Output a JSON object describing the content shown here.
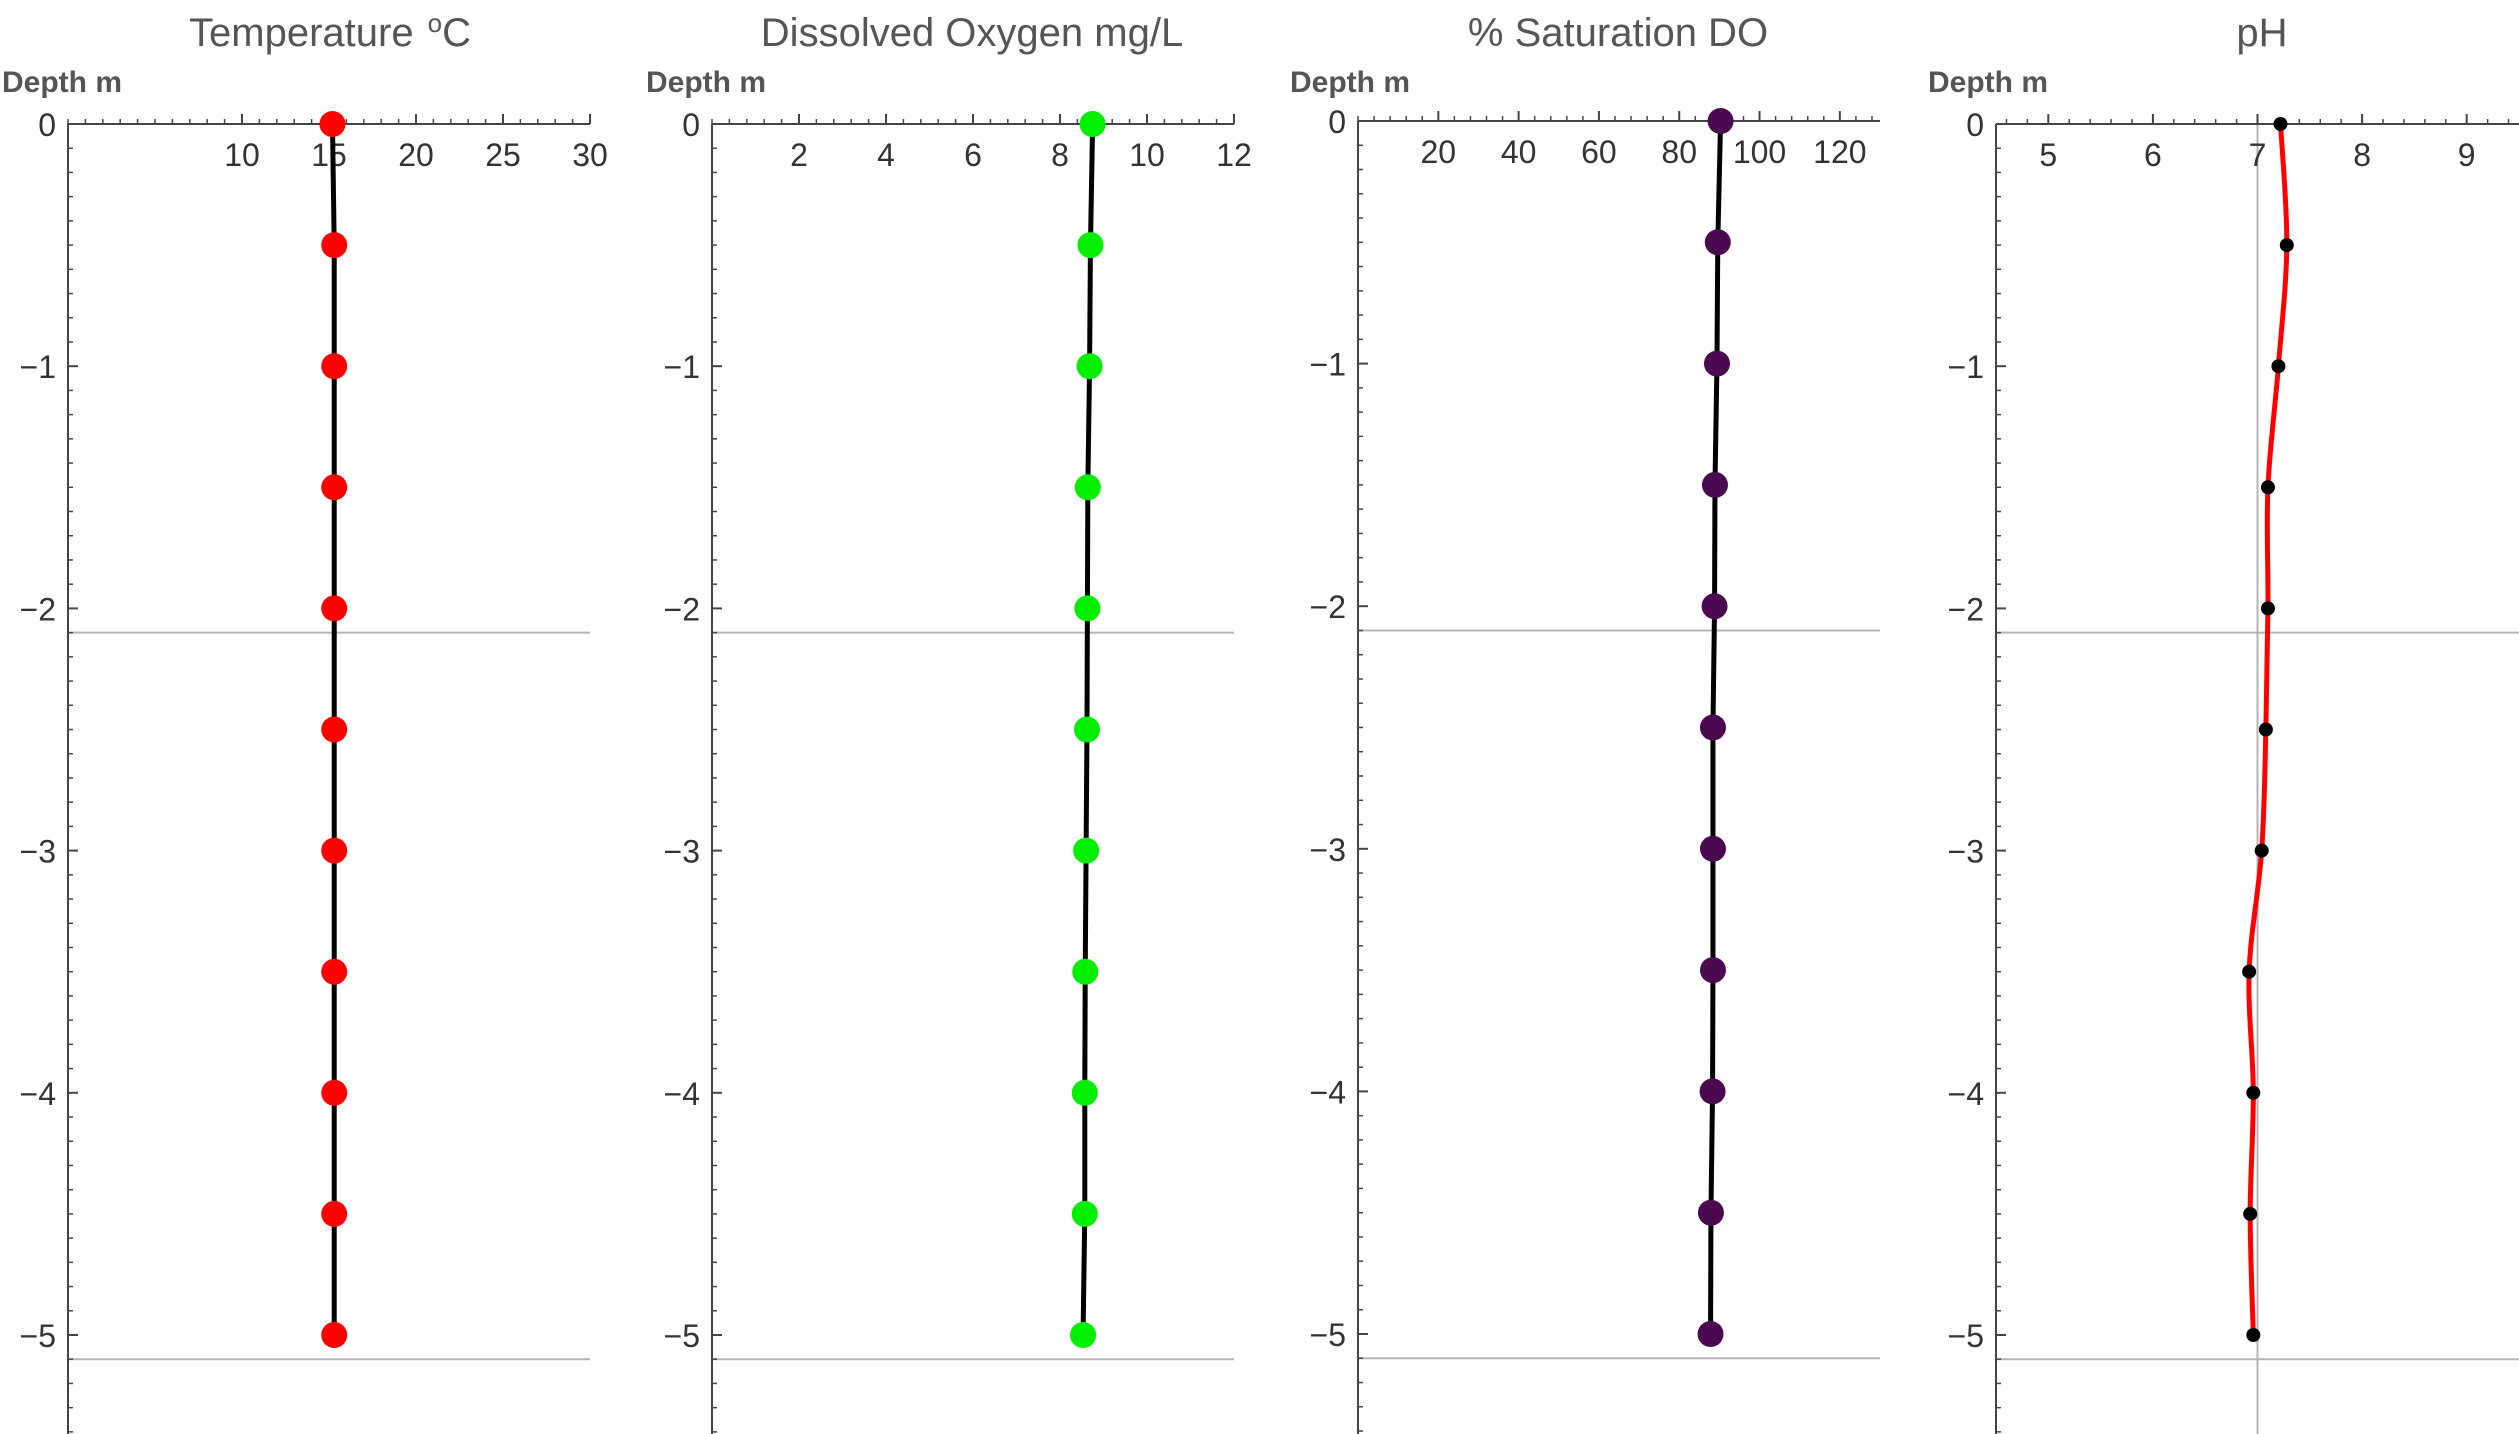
{
  "chart_data": [
    {
      "type": "line",
      "title": "Temperature",
      "title_sup": "o",
      "title_unit": "C",
      "xlabel": "",
      "ylabel": "Depth m",
      "xlim": [
        0,
        30
      ],
      "ylim": [
        -5.4,
        0
      ],
      "x_ticks": [
        10,
        15,
        20,
        25,
        30
      ],
      "y_ticks": [
        0,
        -1,
        -2,
        -3,
        -4,
        -5
      ],
      "y_tick_labels": [
        "0",
        "−1",
        "−2",
        "−3",
        "−4",
        "−5"
      ],
      "grid_y": [
        -2.1,
        -5.1
      ],
      "line_color": "#000000",
      "marker_color": "#ff0000",
      "series": [
        {
          "depth": [
            0,
            -0.5,
            -1,
            -1.5,
            -2,
            -2.5,
            -3,
            -3.5,
            -4,
            -4.5,
            -5
          ],
          "values": [
            15.2,
            15.3,
            15.3,
            15.3,
            15.3,
            15.3,
            15.3,
            15.3,
            15.3,
            15.3,
            15.3
          ]
        }
      ]
    },
    {
      "type": "line",
      "title": "Dissolved Oxygen mg/L",
      "xlabel": "",
      "ylabel": "Depth m",
      "xlim": [
        0,
        12
      ],
      "ylim": [
        -5.4,
        0
      ],
      "x_ticks": [
        2,
        4,
        6,
        8,
        10,
        12
      ],
      "y_ticks": [
        0,
        -1,
        -2,
        -3,
        -4,
        -5
      ],
      "y_tick_labels": [
        "0",
        "−1",
        "−2",
        "−3",
        "−4",
        "−5"
      ],
      "grid_y": [
        -2.1,
        -5.1
      ],
      "line_color": "#000000",
      "marker_color": "#00ee00",
      "series": [
        {
          "depth": [
            0,
            -0.5,
            -1,
            -1.5,
            -2,
            -2.5,
            -3,
            -3.5,
            -4,
            -4.5,
            -5
          ],
          "values": [
            8.75,
            8.7,
            8.68,
            8.64,
            8.63,
            8.62,
            8.6,
            8.58,
            8.57,
            8.57,
            8.53
          ]
        }
      ]
    },
    {
      "type": "line",
      "title": "% Saturation DO",
      "xlabel": "",
      "ylabel": "Depth m",
      "xlim": [
        0,
        130
      ],
      "ylim": [
        -5.4,
        0
      ],
      "x_ticks": [
        20,
        40,
        60,
        80,
        100,
        120
      ],
      "y_ticks": [
        0,
        -1,
        -2,
        -3,
        -4,
        -5
      ],
      "y_tick_labels": [
        "0",
        "−1",
        "−2",
        "−3",
        "−4",
        "−5"
      ],
      "grid_y": [
        -2.1,
        -5.1
      ],
      "line_color": "#000000",
      "marker_color": "#4b0a50",
      "series": [
        {
          "depth": [
            0,
            -0.5,
            -1,
            -1.5,
            -2,
            -2.5,
            -3,
            -3.5,
            -4,
            -4.5,
            -5
          ],
          "values": [
            90.3,
            89.6,
            89.4,
            88.9,
            88.8,
            88.4,
            88.4,
            88.4,
            88.3,
            87.9,
            87.8
          ]
        }
      ]
    },
    {
      "type": "line",
      "title": "pH",
      "xlabel": "",
      "ylabel": "Depth m",
      "xlim": [
        4.5,
        9.5
      ],
      "ylim": [
        -5.4,
        0
      ],
      "x_ticks": [
        5,
        6,
        7,
        8,
        9
      ],
      "y_ticks": [
        0,
        -1,
        -2,
        -3,
        -4,
        -5
      ],
      "y_tick_labels": [
        "0",
        "−1",
        "−2",
        "−3",
        "−4",
        "−5"
      ],
      "grid_y": [
        -2.1,
        -5.1
      ],
      "grid_x": [
        7
      ],
      "line_color": "#ff0000",
      "marker_color": "#000000",
      "series": [
        {
          "depth": [
            0,
            -0.5,
            -1,
            -1.5,
            -2,
            -2.5,
            -3,
            -3.5,
            -4,
            -4.5,
            -5
          ],
          "values": [
            7.22,
            7.28,
            7.2,
            7.1,
            7.1,
            7.08,
            7.04,
            6.92,
            6.96,
            6.93,
            6.96
          ]
        }
      ]
    }
  ]
}
